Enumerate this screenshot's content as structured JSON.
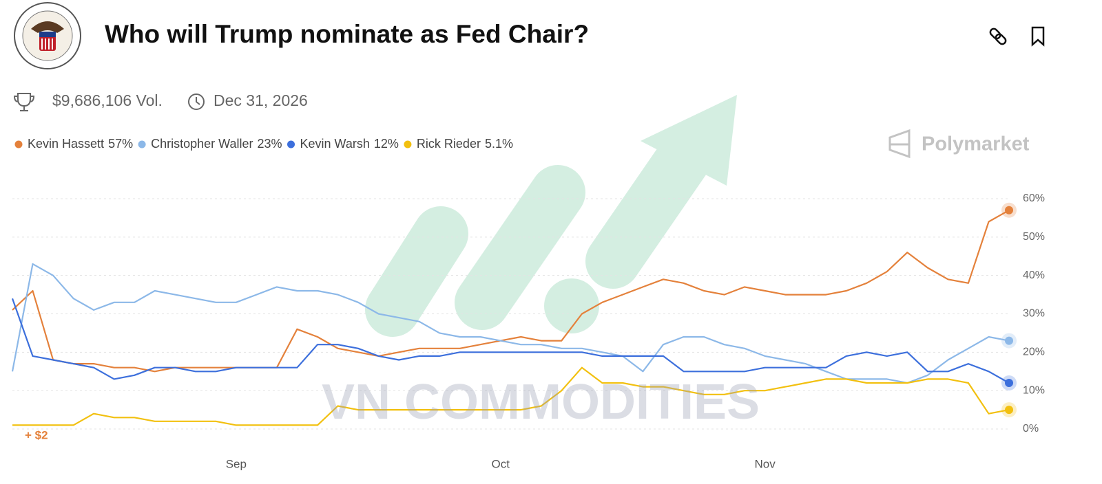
{
  "header": {
    "title": "Who will Trump nominate as Fed Chair?",
    "volume": "$9,686,106 Vol.",
    "end_date": "Dec 31, 2026",
    "brand": "Polymarket"
  },
  "watermark": "VN COMMODITIES",
  "gain_label": "+ $2",
  "chart_data": {
    "type": "line",
    "categories": [
      null,
      null,
      null,
      null,
      null,
      null,
      null,
      null,
      null,
      null,
      null,
      "Sep",
      null,
      null,
      null,
      null,
      null,
      null,
      null,
      null,
      null,
      null,
      null,
      null,
      "Oct",
      null,
      null,
      null,
      null,
      null,
      null,
      null,
      null,
      null,
      null,
      null,
      null,
      "Nov",
      null,
      null,
      null,
      null,
      null,
      null,
      null,
      null,
      null,
      null,
      null,
      null
    ],
    "series": [
      {
        "name": "Kevin Hassett",
        "latest_label": "57%",
        "color": "#e4813b",
        "values": [
          31,
          36,
          18,
          17,
          17,
          16,
          16,
          15,
          16,
          16,
          16,
          16,
          16,
          16,
          26,
          24,
          21,
          20,
          19,
          20,
          21,
          21,
          21,
          22,
          23,
          24,
          23,
          23,
          30,
          33,
          35,
          37,
          39,
          38,
          36,
          35,
          37,
          36,
          35,
          35,
          35,
          36,
          38,
          41,
          46,
          42,
          39,
          38,
          54,
          57
        ]
      },
      {
        "name": "Christopher Waller",
        "latest_label": "23%",
        "color": "#8cb8e8",
        "values": [
          15,
          43,
          40,
          34,
          31,
          33,
          33,
          36,
          35,
          34,
          33,
          33,
          35,
          37,
          36,
          36,
          35,
          33,
          30,
          29,
          28,
          25,
          24,
          24,
          23,
          22,
          22,
          21,
          21,
          20,
          19,
          15,
          22,
          24,
          24,
          22,
          21,
          19,
          18,
          17,
          15,
          13,
          13,
          13,
          12,
          14,
          18,
          21,
          24,
          23
        ]
      },
      {
        "name": "Kevin Warsh",
        "latest_label": "12%",
        "color": "#3c6fdc",
        "values": [
          34,
          19,
          18,
          17,
          16,
          13,
          14,
          16,
          16,
          15,
          15,
          16,
          16,
          16,
          16,
          22,
          22,
          21,
          19,
          18,
          19,
          19,
          20,
          20,
          20,
          20,
          20,
          20,
          20,
          19,
          19,
          19,
          19,
          15,
          15,
          15,
          15,
          16,
          16,
          16,
          16,
          19,
          20,
          19,
          20,
          15,
          15,
          17,
          15,
          12
        ]
      },
      {
        "name": "Rick Rieder",
        "latest_label": "5.1%",
        "color": "#f2c00f",
        "values": [
          1,
          1,
          1,
          1,
          4,
          3,
          3,
          2,
          2,
          2,
          2,
          1,
          1,
          1,
          1,
          1,
          6,
          5,
          5,
          5,
          5,
          5,
          5,
          5,
          5,
          5,
          6,
          10,
          16,
          12,
          12,
          11,
          11,
          10,
          9,
          9,
          10,
          10,
          11,
          12,
          13,
          13,
          12,
          12,
          12,
          13,
          13,
          12,
          4,
          5
        ]
      }
    ],
    "ylim": [
      0,
      60
    ],
    "yticks": [
      {
        "value": 0,
        "label": "0%"
      },
      {
        "value": 10,
        "label": "10%"
      },
      {
        "value": 20,
        "label": "20%"
      },
      {
        "value": 30,
        "label": "30%"
      },
      {
        "value": 40,
        "label": "40%"
      },
      {
        "value": 50,
        "label": "50%"
      },
      {
        "value": 60,
        "label": "60%"
      }
    ],
    "grid": true
  }
}
